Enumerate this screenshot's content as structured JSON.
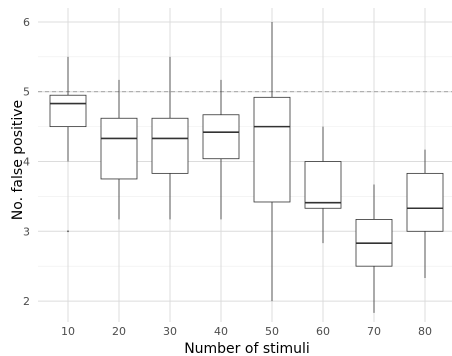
{
  "chart_data": {
    "type": "boxplot",
    "title": "",
    "xlabel": "Number of stimuli",
    "ylabel": "No. false positive",
    "categories": [
      "10",
      "20",
      "30",
      "40",
      "50",
      "60",
      "70",
      "80"
    ],
    "ylim": [
      1.7,
      6.2
    ],
    "yticks": [
      2,
      3,
      4,
      5,
      6
    ],
    "grid": true,
    "reference_line": {
      "y": 5,
      "style": "dashed"
    },
    "boxes": [
      {
        "category": "10",
        "q1": 4.5,
        "median": 4.83,
        "q3": 4.95,
        "whisker_low": 4.0,
        "whisker_high": 5.5,
        "outliers": [
          3.0
        ]
      },
      {
        "category": "20",
        "q1": 3.75,
        "median": 4.33,
        "q3": 4.62,
        "whisker_low": 3.17,
        "whisker_high": 5.17,
        "outliers": []
      },
      {
        "category": "30",
        "q1": 3.83,
        "median": 4.33,
        "q3": 4.62,
        "whisker_low": 3.17,
        "whisker_high": 5.5,
        "outliers": []
      },
      {
        "category": "40",
        "q1": 4.04,
        "median": 4.42,
        "q3": 4.67,
        "whisker_low": 3.17,
        "whisker_high": 5.17,
        "outliers": []
      },
      {
        "category": "50",
        "q1": 3.42,
        "median": 4.5,
        "q3": 4.92,
        "whisker_low": 2.0,
        "whisker_high": 6.0,
        "outliers": []
      },
      {
        "category": "60",
        "q1": 3.33,
        "median": 3.41,
        "q3": 4.0,
        "whisker_low": 2.83,
        "whisker_high": 4.5,
        "outliers": []
      },
      {
        "category": "70",
        "q1": 2.5,
        "median": 2.83,
        "q3": 3.17,
        "whisker_low": 1.83,
        "whisker_high": 3.67,
        "outliers": []
      },
      {
        "category": "80",
        "q1": 3.0,
        "median": 3.33,
        "q3": 3.83,
        "whisker_low": 2.33,
        "whisker_high": 4.17,
        "outliers": []
      }
    ]
  }
}
